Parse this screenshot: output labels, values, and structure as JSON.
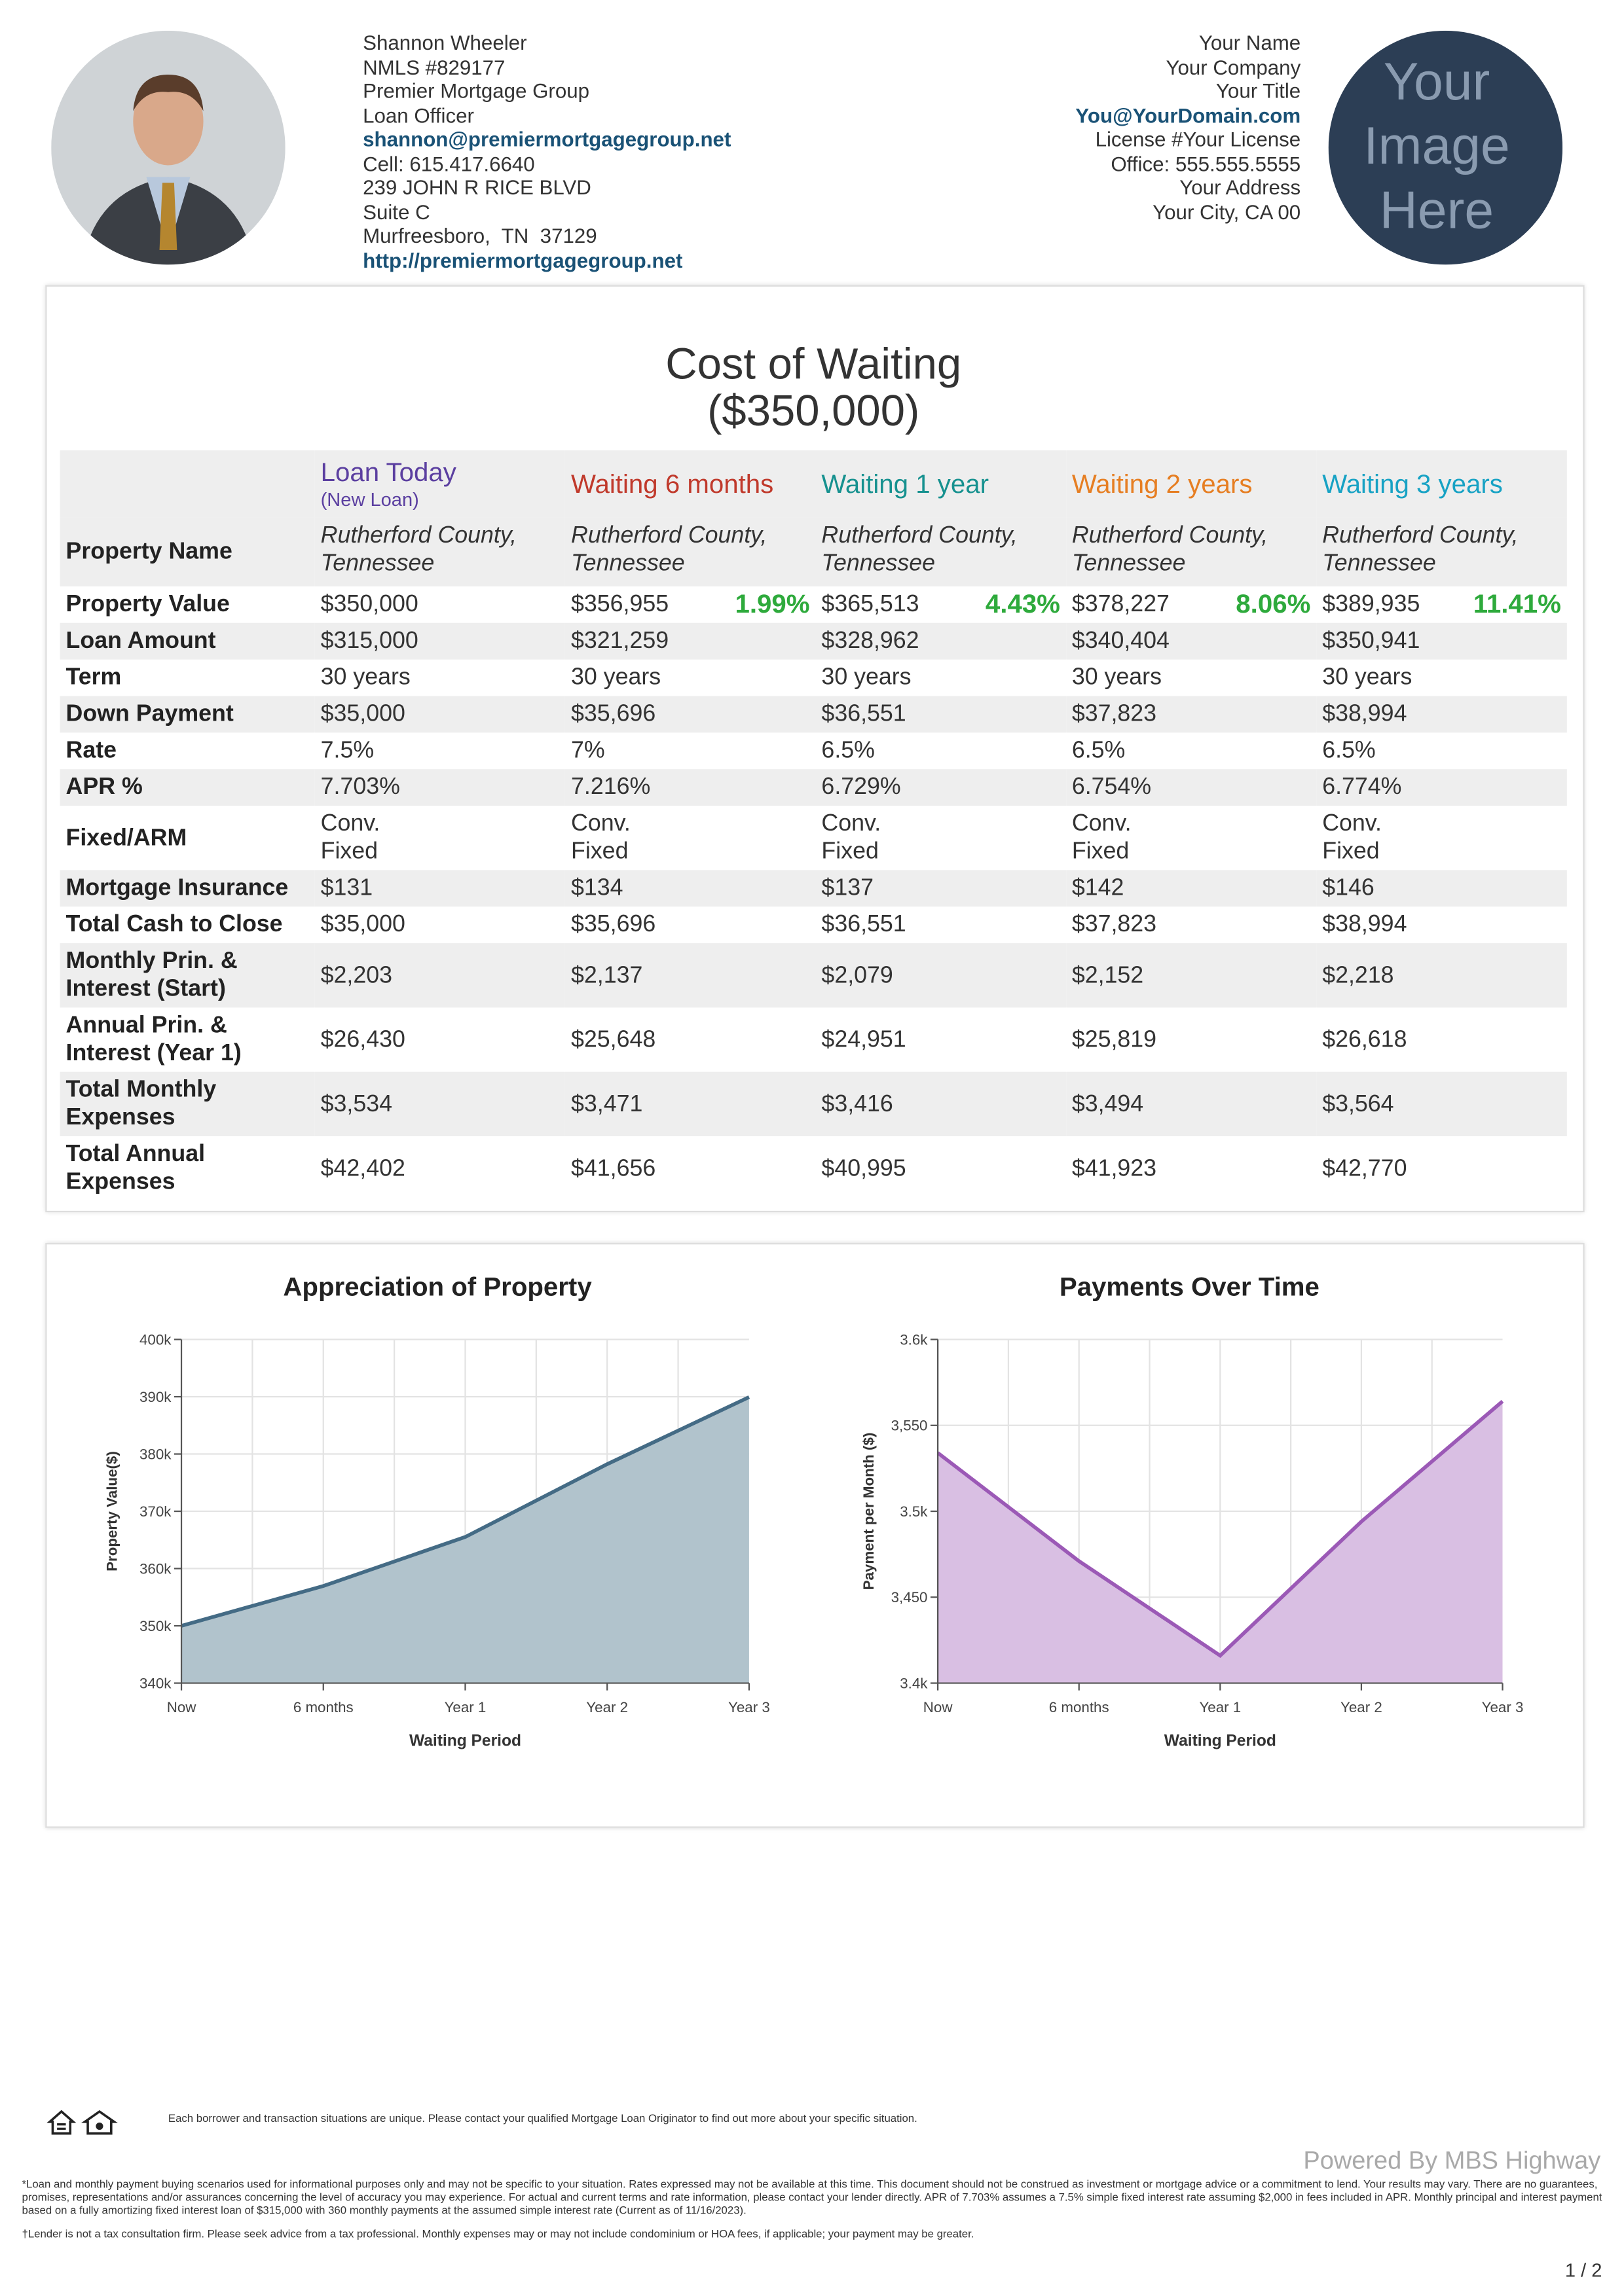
{
  "header": {
    "left": [
      "Shannon Wheeler",
      "NMLS #829177",
      "Premier Mortgage Group",
      "Loan Officer",
      "shannon@premiermortgagegroup.net",
      "Cell: 615.417.6640",
      "239 JOHN R RICE BLVD",
      "Suite C",
      "Murfreesboro,  TN  37129",
      "http://premiermortgagegroup.net"
    ],
    "right": [
      "Your Name",
      "Your Company",
      "Your Title",
      "You@YourDomain.com",
      "License #Your License",
      "Office: 555.555.5555",
      "Your Address",
      "Your City, CA 00"
    ],
    "placeholder": [
      "Your",
      "Image",
      "Here"
    ]
  },
  "table": {
    "title": [
      "Cost of Waiting",
      "($350,000)"
    ],
    "columns": [
      {
        "name": "Loan Today",
        "sub": "(New Loan)",
        "color": "#5b3fa0"
      },
      {
        "name": "Waiting 6 months",
        "color": "#c0392b"
      },
      {
        "name": "Waiting 1 year",
        "color": "#16918f"
      },
      {
        "name": "Waiting 2 years",
        "color": "#e67e22"
      },
      {
        "name": "Waiting 3 years",
        "color": "#17a2c4"
      }
    ],
    "rows": [
      {
        "label": "Property Name",
        "cells": [
          "Rutherford County, Tennessee",
          "Rutherford County, Tennessee",
          "Rutherford County, Tennessee",
          "Rutherford County, Tennessee",
          "Rutherford County, Tennessee"
        ]
      },
      {
        "label": "Property Value",
        "cells": [
          "$350,000",
          {
            "text": "$356,955",
            "change": "1.99%"
          },
          {
            "text": "$365,513",
            "change": "4.43%"
          },
          {
            "text": "$378,227",
            "change": "8.06%"
          },
          {
            "text": "$389,935",
            "change": "11.41%"
          }
        ]
      },
      {
        "label": "Loan Amount",
        "cells": [
          "$315,000",
          "$321,259",
          "$328,962",
          "$340,404",
          "$350,941"
        ]
      },
      {
        "label": "Term",
        "cells": [
          "30 years",
          "30 years",
          "30 years",
          "30 years",
          "30 years"
        ]
      },
      {
        "label": "Down Payment",
        "cells": [
          "$35,000",
          "$35,696",
          "$36,551",
          "$37,823",
          "$38,994"
        ]
      },
      {
        "label": "Rate",
        "cells": [
          "7.5%",
          "7%",
          "6.5%",
          "6.5%",
          "6.5%"
        ]
      },
      {
        "label": "APR %",
        "cells": [
          "7.703%",
          "7.216%",
          "6.729%",
          "6.754%",
          "6.774%"
        ]
      },
      {
        "label": "Fixed/ARM",
        "cells": [
          "Conv.\nFixed",
          "Conv.\nFixed",
          "Conv.\nFixed",
          "Conv.\nFixed",
          "Conv.\nFixed"
        ]
      },
      {
        "label": "Mortgage Insurance",
        "cells": [
          "$131",
          "$134",
          "$137",
          "$142",
          "$146"
        ]
      },
      {
        "label": "Total Cash to Close",
        "cells": [
          "$35,000",
          "$35,696",
          "$36,551",
          "$37,823",
          "$38,994"
        ]
      },
      {
        "label": "Monthly Prin. & Interest (Start)",
        "cells": [
          "$2,203",
          "$2,137",
          "$2,079",
          "$2,152",
          "$2,218"
        ]
      },
      {
        "label": "Annual Prin. & Interest (Year 1)",
        "cells": [
          "$26,430",
          "$25,648",
          "$24,951",
          "$25,819",
          "$26,618"
        ]
      },
      {
        "label": "Total Monthly Expenses",
        "cells": [
          "$3,534",
          "$3,471",
          "$3,416",
          "$3,494",
          "$3,564"
        ]
      },
      {
        "label": "Total Annual Expenses",
        "cells": [
          "$42,402",
          "$41,656",
          "$40,995",
          "$41,923",
          "$42,770"
        ]
      }
    ]
  },
  "chart_data": [
    {
      "type": "area",
      "title": "Appreciation of Property",
      "xlabel": "Waiting Period",
      "ylabel": "Property Value($)",
      "categories": [
        "Now",
        "6 months",
        "Year 1",
        "Year 2",
        "Year 3"
      ],
      "values": [
        350000,
        356955,
        365513,
        378227,
        389935
      ],
      "color": "#446b85",
      "fill": "#b1c3cc",
      "ylim": [
        340000,
        400000
      ],
      "yticks": [
        {
          "value": 340000,
          "label": "340k"
        },
        {
          "value": 350000,
          "label": "350k"
        },
        {
          "value": 360000,
          "label": "360k"
        },
        {
          "value": 370000,
          "label": "370k"
        },
        {
          "value": 380000,
          "label": "380k"
        },
        {
          "value": 390000,
          "label": "390k"
        },
        {
          "value": 400000,
          "label": "400k"
        }
      ],
      "grid": true
    },
    {
      "type": "area",
      "title": "Payments Over Time",
      "xlabel": "Waiting Period",
      "ylabel": "Payment per Month ($)",
      "categories": [
        "Now",
        "6 months",
        "Year 1",
        "Year 2",
        "Year 3"
      ],
      "values": [
        3534,
        3471,
        3416,
        3494,
        3564
      ],
      "color": "#9b59b6",
      "fill": "#d9bfe3",
      "ylim": [
        3400,
        3600
      ],
      "yticks": [
        {
          "value": 3400,
          "label": "3.4k"
        },
        {
          "value": 3450,
          "label": "3,450"
        },
        {
          "value": 3500,
          "label": "3.5k"
        },
        {
          "value": 3550,
          "label": "3,550"
        },
        {
          "value": 3600,
          "label": "3.6k"
        }
      ],
      "grid": true
    }
  ],
  "footer": {
    "notice": "Each borrower and transaction situations are unique. Please contact your qualified Mortgage Loan Originator to find out more about your specific situation.",
    "powered": "Powered By MBS Highway",
    "disclaimer": "*Loan and monthly payment buying scenarios used for informational purposes only and may not be specific to your situation. Rates expressed may not be available at this time. This document should not be construed as investment or mortgage advice or a commitment to lend. Your results may vary. There are no guarantees, promises, representations and/or assurances concerning the level of accuracy you may experience. For actual and current terms and rate information, please contact your lender directly. APR of 7.703% assumes a 7.5% simple fixed interest rate assuming $2,000 in fees included in APR. Monthly principal and interest payment based on a fully amortizing fixed interest loan of $315,000 with 360 monthly payments at the assumed simple interest rate (Current as of 11/16/2023).",
    "footnote": "†Lender is not a tax consultation firm. Please seek advice from a tax professional. Monthly expenses may or may not include condominium or HOA fees, if applicable; your payment may be greater.",
    "page": "1 / 2"
  }
}
